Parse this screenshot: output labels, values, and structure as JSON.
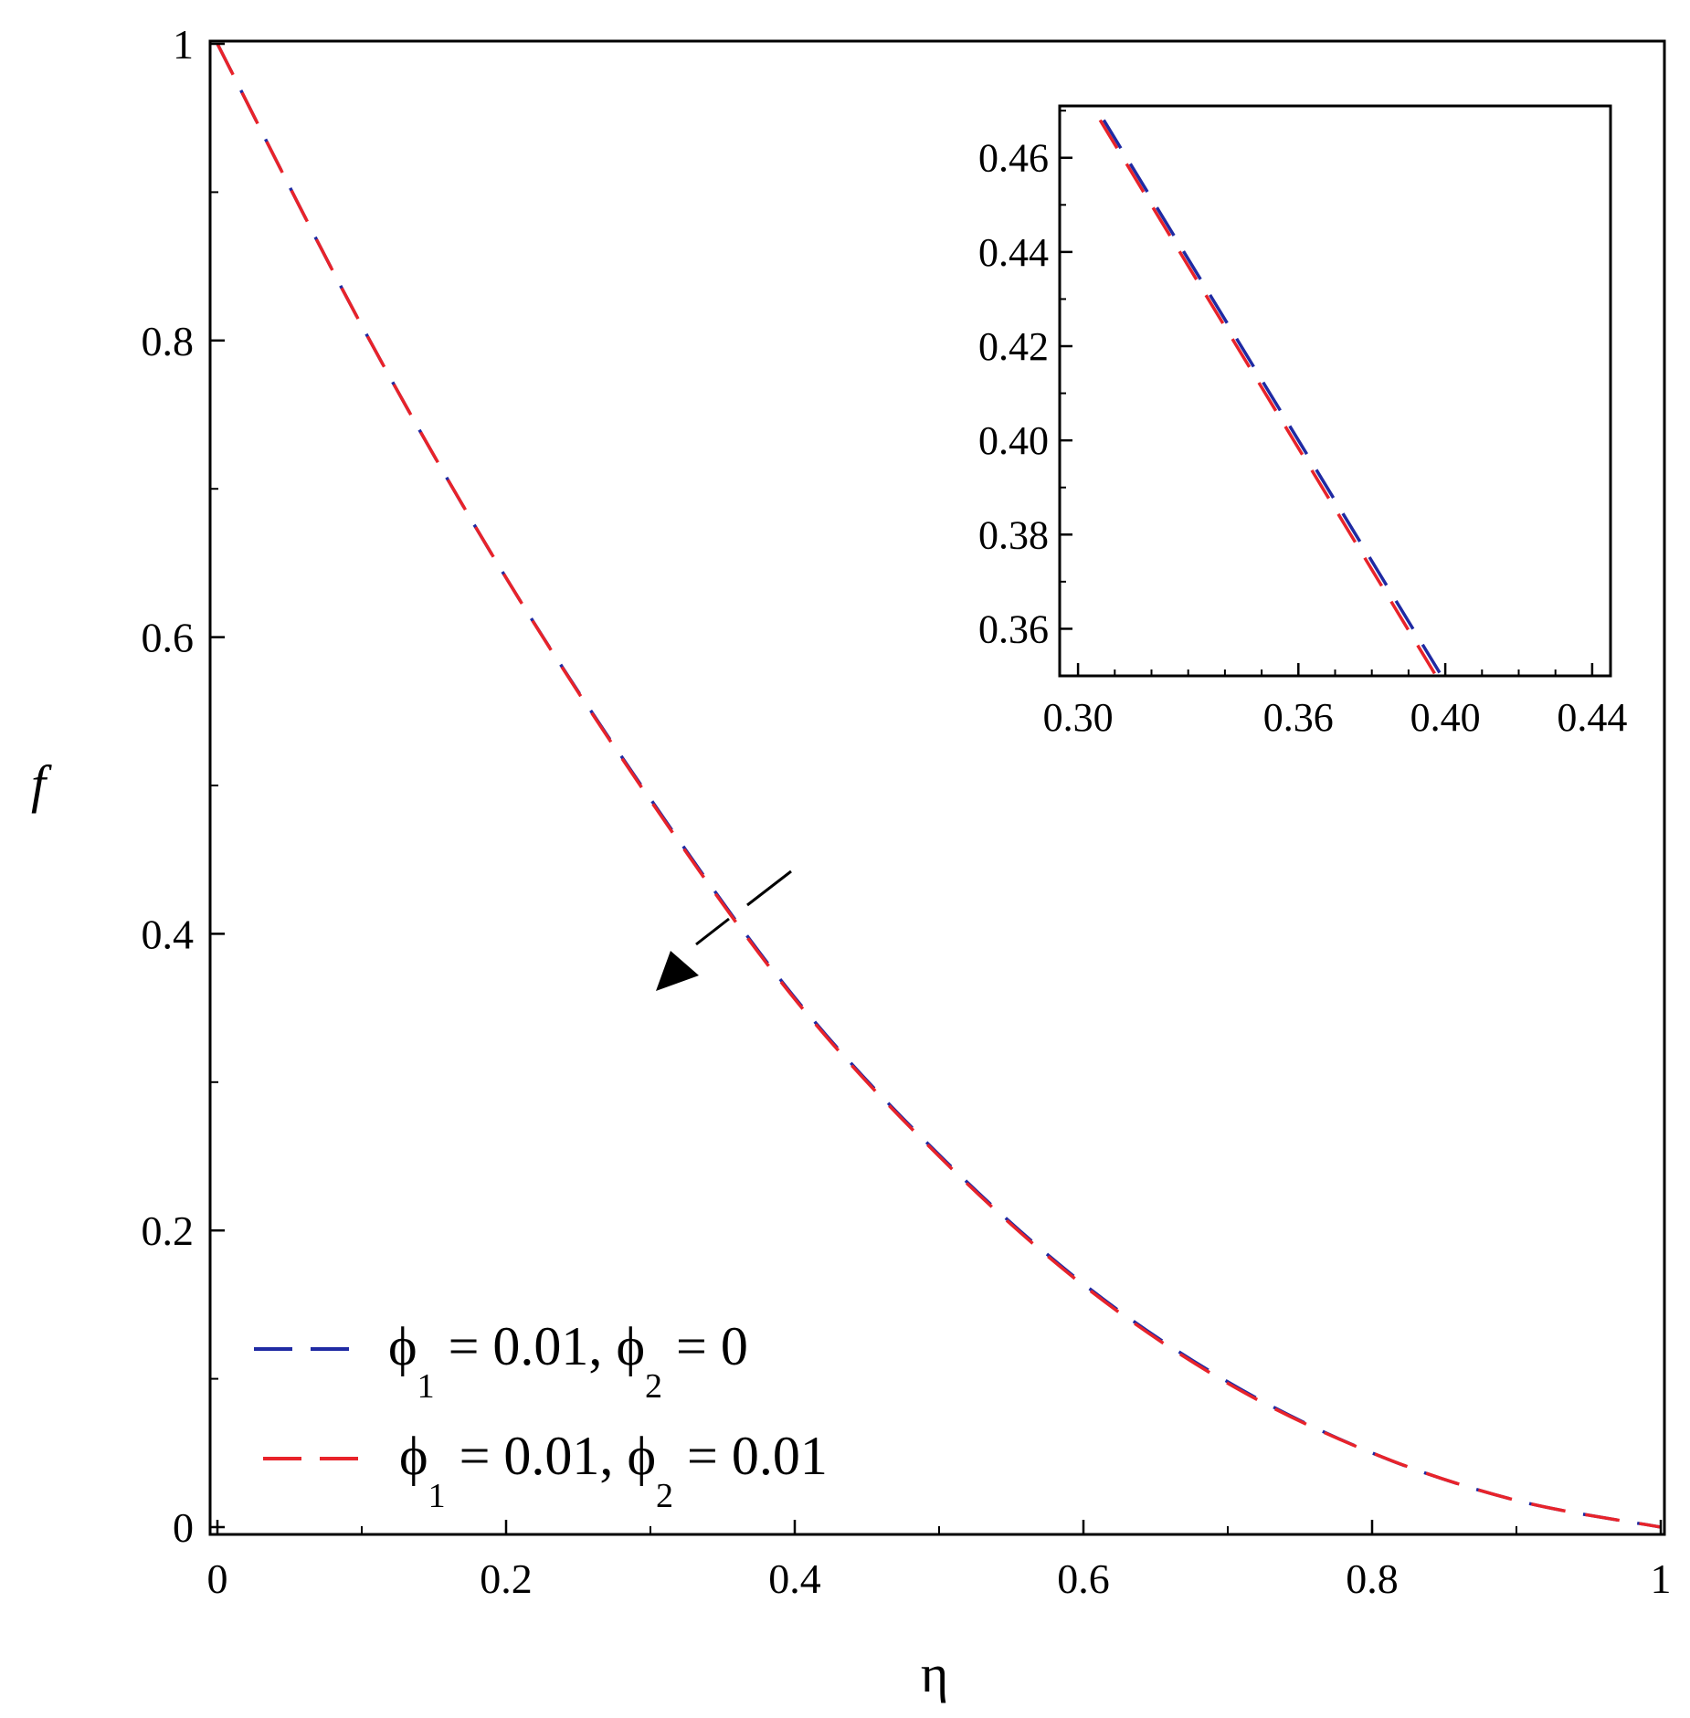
{
  "chart_data": [
    {
      "type": "line",
      "xlabel": "η",
      "ylabel": "f",
      "xlim": [
        0,
        1
      ],
      "ylim": [
        0,
        1
      ],
      "xticks": [
        0,
        0.2,
        0.4,
        0.6,
        0.8,
        1
      ],
      "xtick_labels": [
        "0",
        "0.2",
        "0.4",
        "0.6",
        "0.8",
        "1"
      ],
      "yticks": [
        0,
        0.2,
        0.4,
        0.6,
        0.8,
        1
      ],
      "ytick_labels": [
        "0",
        "0.2",
        "0.4",
        "0.6",
        "0.8",
        "1"
      ],
      "grid": false,
      "legend_position": "bottom-left",
      "annotation": "arrow pointing down-left across the curves near η = 0.35",
      "x": [
        0,
        0.1,
        0.2,
        0.3,
        0.4,
        0.5,
        0.6,
        0.7,
        0.8,
        0.9,
        1
      ],
      "series": [
        {
          "name_parts": {
            "phi1_symbol": "ϕ",
            "phi1_sub": "1",
            "phi1_value": " = 0.01, ",
            "phi2_symbol": "ϕ",
            "phi2_sub": "2",
            "phi2_value": " = 0"
          },
          "color": "#1f2aa3",
          "dash": "dashed",
          "values": [
            1.0,
            0.81,
            0.64,
            0.491,
            0.357,
            0.251,
            0.164,
            0.098,
            0.05,
            0.018,
            0.0
          ]
        },
        {
          "name_parts": {
            "phi1_symbol": "ϕ",
            "phi1_sub": "1",
            "phi1_value": " = 0.01, ",
            "phi2_symbol": "ϕ",
            "phi2_sub": "2",
            "phi2_value": " = 0.01"
          },
          "color": "#e8232a",
          "dash": "dashed",
          "values": [
            1.0,
            0.81,
            0.64,
            0.49,
            0.356,
            0.25,
            0.163,
            0.097,
            0.05,
            0.018,
            0.0
          ]
        }
      ]
    },
    {
      "type": "line",
      "role": "inset",
      "xlim": [
        0.295,
        0.445
      ],
      "ylim": [
        0.35,
        0.471
      ],
      "xticks": [
        0.3,
        0.36,
        0.4,
        0.44
      ],
      "xtick_labels": [
        "0.30",
        "0.36",
        "0.40",
        "0.44"
      ],
      "yticks": [
        0.36,
        0.38,
        0.4,
        0.42,
        0.44,
        0.46
      ],
      "ytick_labels": [
        "0.36",
        "0.38",
        "0.40",
        "0.42",
        "0.44",
        "0.46"
      ],
      "grid": false,
      "series": [
        {
          "color": "#1f2aa3",
          "dash": "dashed",
          "x": [
            0.307,
            0.399
          ],
          "values": [
            0.468,
            0.35
          ]
        },
        {
          "color": "#e8232a",
          "dash": "dashed",
          "x": [
            0.306,
            0.3975
          ],
          "values": [
            0.468,
            0.35
          ]
        }
      ]
    }
  ]
}
